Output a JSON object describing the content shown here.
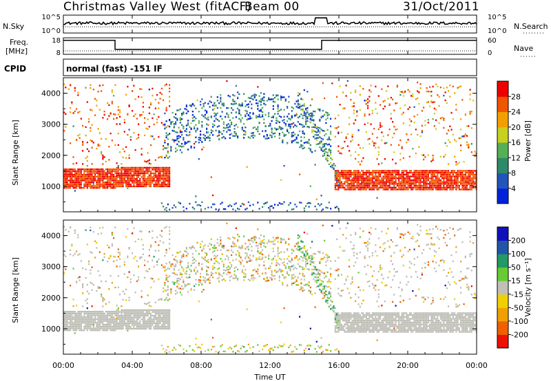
{
  "header": {
    "title": "Christmas Valley West (fitACF)",
    "beam": "Beam 00",
    "date": "31/Oct/2011"
  },
  "noise_panel": {
    "left_label": "N.Sky",
    "right_label": "N.Search",
    "left_ticks": [
      "10^5",
      "10^0"
    ],
    "right_ticks": [
      "10^5",
      "10^0"
    ]
  },
  "freq_panel": {
    "left_label_1": "Freq.",
    "left_label_2": "[MHz]",
    "right_label": "Nave",
    "left_ticks": [
      "18",
      "8"
    ],
    "right_ticks": [
      "60",
      "0"
    ]
  },
  "cpid": {
    "label": "CPID",
    "mode": "normal (fast) -151 IF"
  },
  "colors": {
    "power_scale": [
      "#0022dd",
      "#2255bb",
      "#2d8a6a",
      "#55b055",
      "#c8d020",
      "#f2a000",
      "#f05500",
      "#ee0000"
    ],
    "velocity_scale": [
      "#ee1100",
      "#f06000",
      "#f0a000",
      "#f0d000",
      "#c0c0b8",
      "#66cc33",
      "#229966",
      "#2255aa",
      "#1111bb"
    ],
    "ground_scatter": "#bdbdb5"
  },
  "chart_data": [
    {
      "type": "heatmap",
      "name": "Power",
      "ylabel": "Slant Range [km]",
      "yticks": [
        "4000",
        "3000",
        "2000",
        "1000"
      ],
      "ylim": [
        180,
        4500
      ],
      "colorbar_label": "Power [dB]",
      "colorbar_ticks": [
        "28",
        "24",
        "20",
        "16",
        "12",
        "8",
        "4"
      ],
      "colorbar_range": [
        0,
        32
      ]
    },
    {
      "type": "heatmap",
      "name": "Velocity",
      "ylabel": "Slant Range [km]",
      "yticks": [
        "4000",
        "3000",
        "2000",
        "1000"
      ],
      "ylim": [
        180,
        4500
      ],
      "colorbar_label": "Velocity [m s⁻¹]",
      "colorbar_ticks": [
        "200",
        "100",
        "50",
        "15",
        "-15",
        "-50",
        "-100",
        "-200"
      ],
      "colorbar_range": [
        -250,
        250
      ]
    }
  ],
  "xaxis": {
    "label": "Time UT",
    "ticks": [
      "00:00",
      "04:00",
      "08:00",
      "12:00",
      "16:00",
      "20:00",
      "00:00"
    ],
    "range_hours": [
      0,
      24
    ]
  }
}
